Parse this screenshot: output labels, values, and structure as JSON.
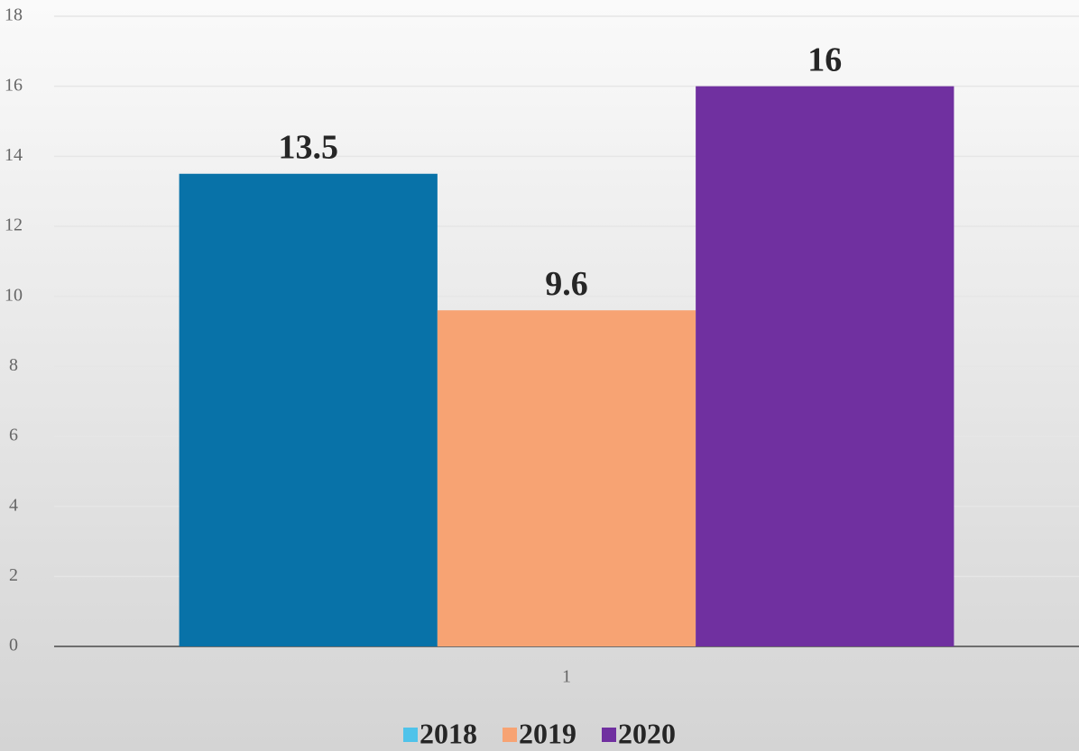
{
  "chart_data": {
    "type": "bar",
    "categories": [
      "1"
    ],
    "series": [
      {
        "name": "2018",
        "color": "#0872a8",
        "legend_color": "#4fc3ea",
        "values": [
          13.5
        ]
      },
      {
        "name": "2019",
        "color": "#f7a373",
        "legend_color": "#f7a373",
        "values": [
          9.6
        ]
      },
      {
        "name": "2020",
        "color": "#7030a0",
        "legend_color": "#7030a0",
        "values": [
          16
        ]
      }
    ],
    "ylim": [
      0,
      18
    ],
    "yticks": [
      0,
      2,
      4,
      6,
      8,
      10,
      12,
      14,
      16,
      18
    ],
    "grid": true,
    "legend": "bottom"
  }
}
